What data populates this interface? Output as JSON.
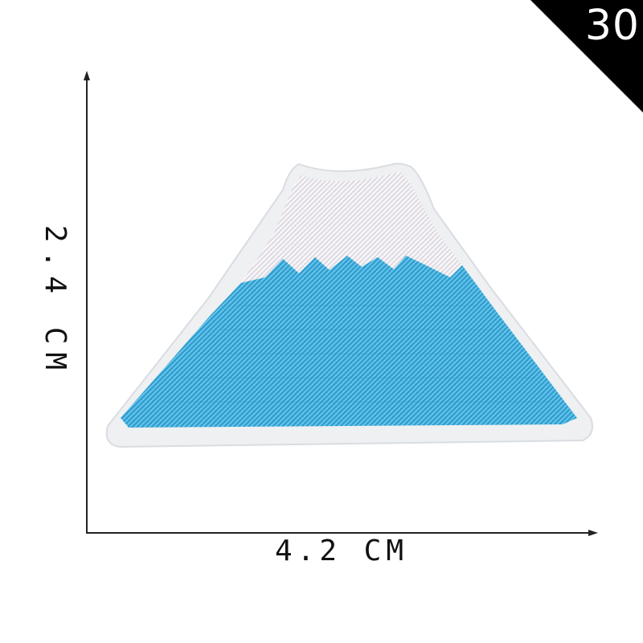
{
  "corner_badge": {
    "number": "30",
    "background": "#000000",
    "text_color": "#ffffff"
  },
  "dimensions": {
    "width_label": "4.2 CM",
    "height_label": "2.4 CM"
  },
  "patch": {
    "subject": "mountain-patch",
    "snow_color": "#e6e3ea",
    "water_color": "#39a8d8",
    "border_color": "#eef0f2"
  }
}
